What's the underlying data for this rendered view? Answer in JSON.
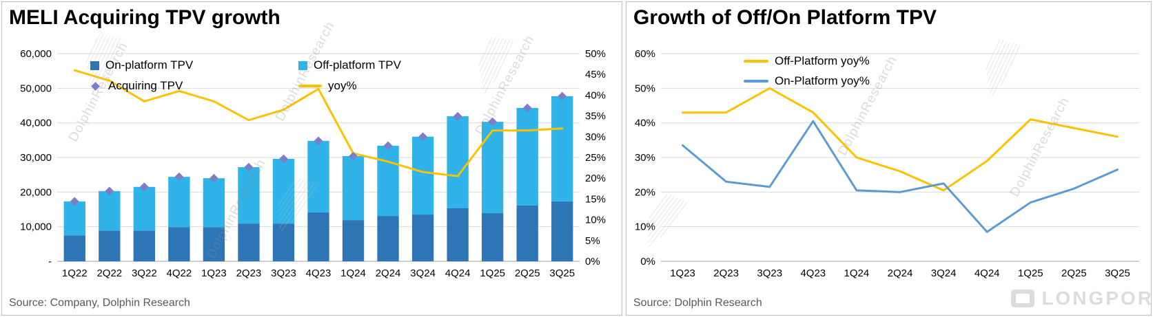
{
  "watermark": "DolphinResearch",
  "brand": "LONGPOR",
  "chart_data": [
    {
      "id": "meli",
      "type": "bar",
      "title": "MELI Acquiring TPV growth",
      "source": "Source:  Company,  Dolphin Research",
      "legend_position": "top-inside",
      "grid": "horizontal",
      "categories": [
        "1Q22",
        "2Q22",
        "3Q22",
        "4Q22",
        "1Q23",
        "2Q23",
        "3Q23",
        "4Q23",
        "1Q24",
        "2Q24",
        "3Q24",
        "4Q24",
        "1Q25",
        "2Q25",
        "3Q25"
      ],
      "series": [
        {
          "name": "On-platform TPV",
          "type": "bar",
          "color": "#2E75B6",
          "values": [
            7500,
            8900,
            8900,
            9900,
            9900,
            10900,
            10900,
            14100,
            11900,
            13100,
            13500,
            15300,
            13900,
            16100,
            17300
          ]
        },
        {
          "name": "Off-platform TPV",
          "type": "bar",
          "color": "#2FB3E8",
          "values": [
            9800,
            11400,
            12600,
            14500,
            14100,
            16300,
            18700,
            20700,
            18500,
            20300,
            22500,
            26600,
            26400,
            28200,
            30400
          ]
        },
        {
          "name": "Acquiring TPV",
          "type": "diamond",
          "color": "#7B7FC7",
          "values": [
            17300,
            20300,
            21500,
            24400,
            24000,
            27200,
            29600,
            34800,
            30400,
            33400,
            36000,
            41900,
            40300,
            44300,
            47700
          ]
        },
        {
          "name": "yoy%",
          "type": "line",
          "axis": "right",
          "color": "#FFC000",
          "values": [
            46,
            43.5,
            38.5,
            41,
            38.5,
            34,
            36.5,
            41.5,
            26,
            24,
            21.5,
            20.5,
            31.5,
            31.5,
            32
          ]
        }
      ],
      "left_axis": {
        "min": 0,
        "max": 60000,
        "labels": [
          "-",
          "10,000",
          "20,000",
          "30,000",
          "40,000",
          "50,000",
          "60,000"
        ]
      },
      "right_axis": {
        "min": 0,
        "max": 50,
        "labels": [
          "0%",
          "5%",
          "10%",
          "15%",
          "20%",
          "25%",
          "30%",
          "35%",
          "40%",
          "45%",
          "50%"
        ]
      }
    },
    {
      "id": "offon",
      "type": "line",
      "title": "Growth of Off/On Platform TPV",
      "source": "Source: Dolphin Research",
      "legend_position": "top-inside",
      "grid": "horizontal",
      "categories": [
        "1Q23",
        "2Q23",
        "3Q23",
        "4Q23",
        "1Q24",
        "2Q24",
        "3Q24",
        "4Q24",
        "1Q25",
        "2Q25",
        "3Q25"
      ],
      "series": [
        {
          "name": "Off-Platform yoy%",
          "type": "line",
          "color": "#FFC000",
          "values": [
            43,
            43,
            50,
            43,
            30,
            26,
            20.5,
            29,
            41,
            38.5,
            36
          ]
        },
        {
          "name": "On-Platform yoy%",
          "type": "line",
          "color": "#5B9BD5",
          "values": [
            33.5,
            23,
            21.5,
            40.5,
            20.5,
            20,
            22.5,
            8.5,
            17,
            21,
            26.5
          ]
        }
      ],
      "left_axis": {
        "min": 0,
        "max": 60,
        "labels": [
          "0%",
          "10%",
          "20%",
          "30%",
          "40%",
          "50%",
          "60%"
        ]
      }
    }
  ]
}
